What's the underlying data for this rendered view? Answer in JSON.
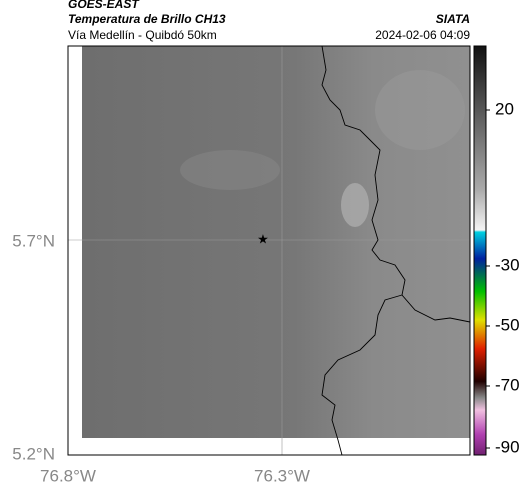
{
  "header": {
    "product": "GOES-EAST",
    "title": "Temperatura de Brillo CH13",
    "agency": "SIATA",
    "route": "Vía Medellín - Quibdó 50km",
    "timestamp": "2024-02-06 04:09"
  },
  "map": {
    "lat_labels": [
      "5.7°N",
      "5.2°N"
    ],
    "lon_labels": [
      "76.8°W",
      "76.3°W"
    ]
  },
  "colorbar": {
    "ticks": [
      20,
      -30,
      -50,
      -70,
      -90
    ]
  }
}
